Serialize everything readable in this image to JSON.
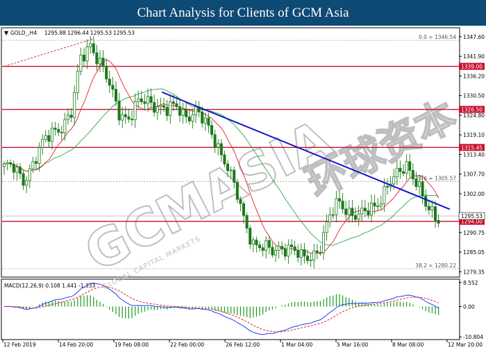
{
  "header": {
    "title": "Chart Analysis for Clients of GCM Asia"
  },
  "watermark": {
    "brand": "GCMASIA",
    "tagline": "GLOBAL CAPITAL MARKETS",
    "chinese": "环球资本"
  },
  "colors": {
    "level_line": "#c8102e",
    "trendline": "#1414c8",
    "ma_fast": "#e0202a",
    "ma_slow": "#2aa84a",
    "macd_line": "#1a3cff",
    "macd_signal": "#e02020",
    "macd_hist": "#1a9a1a",
    "candle": "#1a7a1a"
  },
  "chart_data": {
    "type": "candlestick",
    "symbol_label": "GOLD_,H4",
    "ohlc_header": [
      "1295.88",
      "1296.44",
      "1295.53",
      "1295.53"
    ],
    "y_range": [
      1278,
      1350
    ],
    "y_ticks": [
      {
        "v": 1347.6,
        "t": "1347.60"
      },
      {
        "v": 1341.9,
        "t": "1341.90"
      },
      {
        "v": 1336.2,
        "t": "1336.20"
      },
      {
        "v": 1330.5,
        "t": "1330.50"
      },
      {
        "v": 1324.8,
        "t": "1324.80"
      },
      {
        "v": 1319.1,
        "t": "1319.10"
      },
      {
        "v": 1313.4,
        "t": "1313.40"
      },
      {
        "v": 1307.7,
        "t": "1307.70"
      },
      {
        "v": 1302.0,
        "t": "1302.00"
      },
      {
        "v": 1290.75,
        "t": "1290.75"
      },
      {
        "v": 1285.05,
        "t": "1285.05"
      },
      {
        "v": 1279.35,
        "t": "1279.35"
      }
    ],
    "levels": [
      {
        "v": 1339.0,
        "label": "1339.00"
      },
      {
        "v": 1326.5,
        "label": "1326.50"
      },
      {
        "v": 1315.45,
        "label": "1315.45"
      },
      {
        "v": 1294.0,
        "label": "1294.00"
      }
    ],
    "current_price": {
      "v": 1295.53,
      "label": "1295.53"
    },
    "fib_levels": [
      {
        "v": 1346.54,
        "label": "0.0 = 1346.54"
      },
      {
        "v": 1305.57,
        "label": "23.6 = 1305.57"
      },
      {
        "v": 1280.22,
        "label": "38.2 = 1280.22"
      }
    ],
    "trendline": {
      "start": [
        0.35,
        1331.5
      ],
      "end": [
        0.98,
        1297.5
      ]
    },
    "x_labels": [
      "12 Feb 2019",
      "14 Feb 20:00",
      "19 Feb 08:00",
      "22 Feb 00:00",
      "26 Feb 12:00",
      "1 Mar 04:00",
      "5 Mar 16:00",
      "8 Mar 08:00",
      "12 Mar 20:00"
    ],
    "close_path": [
      [
        0,
        1310
      ],
      [
        3,
        1309
      ],
      [
        6,
        1306
      ],
      [
        9,
        1311
      ],
      [
        12,
        1316
      ],
      [
        15,
        1320
      ],
      [
        18,
        1322
      ],
      [
        21,
        1325
      ],
      [
        24,
        1341
      ],
      [
        27,
        1346
      ],
      [
        30,
        1340
      ],
      [
        33,
        1333
      ],
      [
        36,
        1326
      ],
      [
        39,
        1324
      ],
      [
        42,
        1328
      ],
      [
        45,
        1329
      ],
      [
        48,
        1328
      ],
      [
        51,
        1326
      ],
      [
        54,
        1327
      ],
      [
        57,
        1325
      ],
      [
        60,
        1326
      ],
      [
        63,
        1322
      ],
      [
        66,
        1318
      ],
      [
        69,
        1312
      ],
      [
        72,
        1304
      ],
      [
        75,
        1295
      ],
      [
        78,
        1288
      ],
      [
        81,
        1286
      ],
      [
        84,
        1285
      ],
      [
        87,
        1287
      ],
      [
        90,
        1286
      ],
      [
        93,
        1283
      ],
      [
        96,
        1284
      ],
      [
        99,
        1287
      ],
      [
        102,
        1295
      ],
      [
        105,
        1300
      ],
      [
        108,
        1297
      ],
      [
        111,
        1295
      ],
      [
        114,
        1297
      ],
      [
        117,
        1300
      ],
      [
        120,
        1304
      ],
      [
        123,
        1307
      ],
      [
        126,
        1311
      ],
      [
        129,
        1306
      ],
      [
        132,
        1298
      ],
      [
        135,
        1295
      ],
      [
        136,
        1295.5
      ]
    ],
    "macd": {
      "label": "MACD(12,26,9) 0.108 1.441 -1.333",
      "y_range": [
        -11.5,
        9.5
      ],
      "y_ticks": [
        {
          "v": 8.552,
          "t": "8.552"
        },
        {
          "v": 0.0,
          "t": "0.00"
        },
        {
          "v": -10.804,
          "t": "-10.804"
        }
      ]
    }
  }
}
